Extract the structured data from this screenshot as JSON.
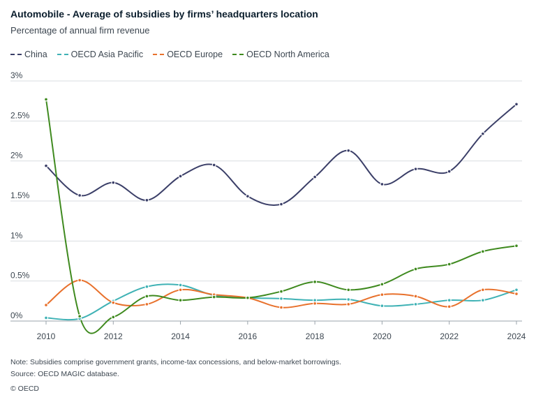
{
  "header": {
    "title": "Automobile - Average of subsidies by firms’ headquarters location",
    "subtitle": "Percentage of annual firm revenue"
  },
  "footer": {
    "note": "Note: Subsidies comprise government grants, income-tax concessions, and below-market borrowings.",
    "source": "Source: OECD MAGIC database.",
    "copyright": "© OECD"
  },
  "chart_data": {
    "type": "line",
    "title": "Automobile - Average of subsidies by firms’ headquarters location",
    "subtitle": "Percentage of annual firm revenue",
    "xlabel": "",
    "ylabel": "",
    "x": [
      2010,
      2011,
      2012,
      2013,
      2014,
      2015,
      2016,
      2017,
      2018,
      2019,
      2020,
      2021,
      2022,
      2023,
      2024
    ],
    "x_ticks": [
      "2010",
      "2012",
      "2014",
      "2016",
      "2018",
      "2020",
      "2022",
      "2024"
    ],
    "y_ticks": [
      "0%",
      "0.5%",
      "1%",
      "1.5%",
      "2%",
      "2.5%",
      "3%"
    ],
    "ylim": [
      0,
      3
    ],
    "grid": true,
    "legend_position": "top-left",
    "series": [
      {
        "name": "China",
        "color": "#3b3f68",
        "values": [
          1.94,
          1.57,
          1.73,
          1.51,
          1.81,
          1.95,
          1.56,
          1.46,
          1.8,
          2.13,
          1.71,
          1.9,
          1.87,
          2.34,
          2.71
        ]
      },
      {
        "name": "OECD Asia Pacific",
        "color": "#3fb2b5",
        "values": [
          0.04,
          0.03,
          0.25,
          0.43,
          0.45,
          0.32,
          0.29,
          0.28,
          0.26,
          0.27,
          0.19,
          0.21,
          0.26,
          0.26,
          0.39
        ]
      },
      {
        "name": "OECD Europe",
        "color": "#e8712c",
        "values": [
          0.2,
          0.51,
          0.23,
          0.21,
          0.39,
          0.33,
          0.29,
          0.17,
          0.22,
          0.21,
          0.33,
          0.31,
          0.18,
          0.39,
          0.34
        ]
      },
      {
        "name": "OECD North America",
        "color": "#3f8a1f",
        "values": [
          2.77,
          0.06,
          0.05,
          0.31,
          0.26,
          0.3,
          0.29,
          0.37,
          0.49,
          0.39,
          0.46,
          0.65,
          0.71,
          0.87,
          0.94
        ]
      }
    ]
  }
}
